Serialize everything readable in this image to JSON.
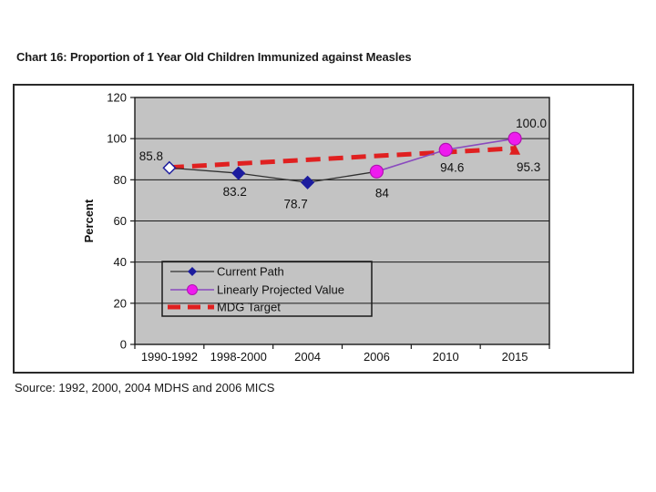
{
  "page": {
    "title": "Chart 16: Proportion of 1 Year Old Children Immunized against Measles",
    "source": "Source: 1992, 2000, 2004 MDHS and 2006 MICS"
  },
  "chart_data": {
    "type": "line",
    "title": "Chart 16: Proportion of 1 Year Old Children Immunized against Measles",
    "xlabel": "",
    "ylabel": "Percent",
    "ylim": [
      0,
      120
    ],
    "ytick_step": 20,
    "grid": true,
    "plot_bg": "#c3c3c3",
    "categories": [
      "1990-1992",
      "1998-2000",
      "2004",
      "2006",
      "2010",
      "2015"
    ],
    "series": [
      {
        "name": "Current Path",
        "values": [
          85.8,
          83.2,
          78.7,
          84,
          null,
          null
        ],
        "line_color": "#303030",
        "marker": "diamond",
        "marker_color": "#1c1c9e"
      },
      {
        "name": "Linearly Projected Value",
        "values": [
          null,
          null,
          null,
          84,
          94.6,
          100.0
        ],
        "line_color": "#8a4bbe",
        "marker": "circle",
        "marker_color": "#ee1cee"
      },
      {
        "name": "MDG Target",
        "values": [
          86,
          87.9,
          89.7,
          91.6,
          93.4,
          95.3
        ],
        "line_color": "#e02020",
        "dashed": true,
        "marker": "triangle-at-end"
      }
    ],
    "data_labels": [
      {
        "text": "85.8",
        "series": 0,
        "point": 0
      },
      {
        "text": "83.2",
        "series": 0,
        "point": 1
      },
      {
        "text": "78.7",
        "series": 0,
        "point": 2
      },
      {
        "text": "84",
        "series": 1,
        "point": 3
      },
      {
        "text": "94.6",
        "series": 1,
        "point": 4
      },
      {
        "text": "100.0",
        "series": 1,
        "point": 5
      },
      {
        "text": "95.3",
        "series": 2,
        "point": 5
      }
    ],
    "legend": {
      "position": "inside-lower-left",
      "entries": [
        "Current Path",
        "Linearly Projected Value",
        "MDG Target"
      ]
    }
  }
}
